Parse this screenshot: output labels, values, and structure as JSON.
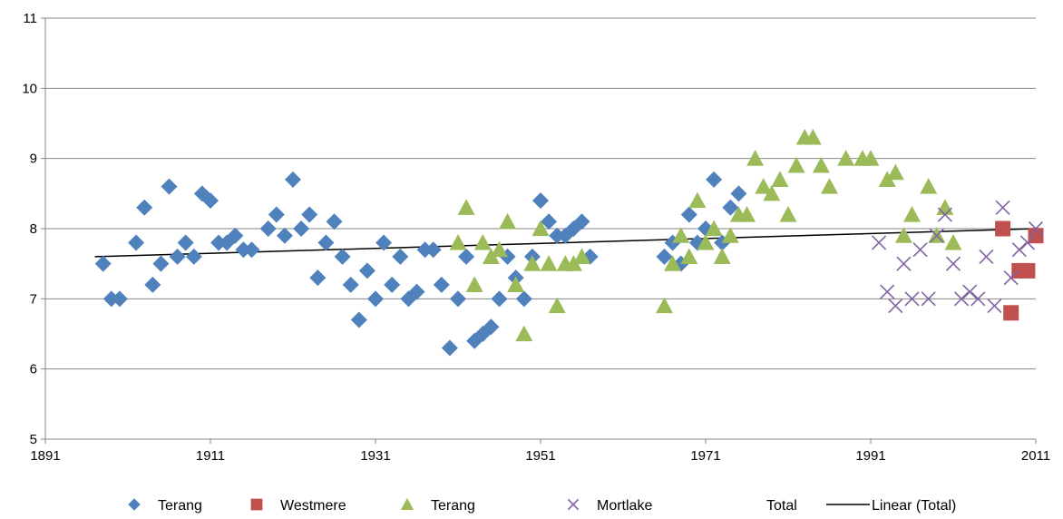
{
  "chart_data": {
    "type": "scatter",
    "xlim": [
      1891,
      2011
    ],
    "ylim": [
      5,
      11
    ],
    "x_ticks": [
      "1891",
      "1911",
      "1931",
      "1951",
      "1971",
      "1991",
      "2011"
    ],
    "y_ticks": [
      "5",
      "6",
      "7",
      "8",
      "9",
      "10",
      "11"
    ],
    "grid": "horizontal",
    "legend_position": "bottom",
    "series": [
      {
        "name": "Terang",
        "marker": "diamond",
        "color": "#4F81BD",
        "x": [
          1898,
          1899,
          1900,
          1902,
          1903,
          1904,
          1905,
          1906,
          1907,
          1908,
          1909,
          1910,
          1911,
          1912,
          1913,
          1914,
          1915,
          1916,
          1918,
          1919,
          1920,
          1921,
          1922,
          1923,
          1924,
          1925,
          1926,
          1927,
          1928,
          1929,
          1930,
          1931,
          1932,
          1933,
          1934,
          1935,
          1936,
          1937,
          1938,
          1939,
          1940,
          1941,
          1942,
          1943,
          1944,
          1945,
          1946,
          1947,
          1948,
          1949,
          1950,
          1951,
          1952,
          1953,
          1954,
          1955,
          1956,
          1957,
          1966,
          1967,
          1968,
          1969,
          1970,
          1971,
          1972,
          1973,
          1974,
          1975
        ],
        "y": [
          7.5,
          7.0,
          7.0,
          7.8,
          8.3,
          7.2,
          7.5,
          8.6,
          7.6,
          7.8,
          7.6,
          8.5,
          8.4,
          7.8,
          7.8,
          7.9,
          7.7,
          7.7,
          8.0,
          8.2,
          7.9,
          8.7,
          8.0,
          8.2,
          7.3,
          7.8,
          8.1,
          7.6,
          7.2,
          6.7,
          7.4,
          7.0,
          7.8,
          7.2,
          7.6,
          7.0,
          7.1,
          7.7,
          7.7,
          7.2,
          6.3,
          7.0,
          7.6,
          6.4,
          6.5,
          6.6,
          7.0,
          7.6,
          7.3,
          7.0,
          7.6,
          8.4,
          8.1,
          7.9,
          7.9,
          8.0,
          8.1,
          7.6,
          7.6,
          7.8,
          7.5,
          8.2,
          7.8,
          8.0,
          8.7,
          7.8,
          8.3,
          8.5
        ]
      },
      {
        "name": "Westmere",
        "marker": "square",
        "color": "#C0504D",
        "x": [
          2007,
          2008,
          2009,
          2010,
          2011
        ],
        "y": [
          8.0,
          6.8,
          7.4,
          7.4,
          7.9
        ]
      },
      {
        "name": "Terang",
        "marker": "triangle",
        "color": "#9BBB59",
        "x": [
          1941,
          1942,
          1943,
          1944,
          1945,
          1946,
          1947,
          1948,
          1949,
          1950,
          1951,
          1952,
          1953,
          1954,
          1955,
          1956,
          1966,
          1967,
          1968,
          1969,
          1970,
          1971,
          1972,
          1973,
          1974,
          1975,
          1976,
          1977,
          1978,
          1979,
          1980,
          1981,
          1982,
          1983,
          1984,
          1985,
          1986,
          1988,
          1990,
          1991,
          1993,
          1994,
          1995,
          1996,
          1998,
          1999,
          2000,
          2001
        ],
        "y": [
          7.8,
          8.3,
          7.2,
          7.8,
          7.6,
          7.7,
          8.1,
          7.2,
          6.5,
          7.5,
          8.0,
          7.5,
          6.9,
          7.5,
          7.5,
          7.6,
          6.9,
          7.5,
          7.9,
          7.6,
          8.4,
          7.8,
          8.0,
          7.6,
          7.9,
          8.2,
          8.2,
          9.0,
          8.6,
          8.5,
          8.7,
          8.2,
          8.9,
          9.3,
          9.3,
          8.9,
          8.6,
          9.0,
          9.0,
          9.0,
          8.7,
          8.8,
          7.9,
          8.2,
          8.6,
          7.9,
          8.3,
          7.8
        ]
      },
      {
        "name": "Mortlake",
        "marker": "cross",
        "color": "#8064A2",
        "x": [
          1992,
          1993,
          1994,
          1995,
          1996,
          1997,
          1998,
          1999,
          2000,
          2001,
          2002,
          2003,
          2004,
          2005,
          2006,
          2007,
          2008,
          2009,
          2010,
          2011
        ],
        "y": [
          7.8,
          7.1,
          6.9,
          7.5,
          7.0,
          7.7,
          7.0,
          7.9,
          8.2,
          7.5,
          7.0,
          7.1,
          7.0,
          7.6,
          6.9,
          8.3,
          7.3,
          7.7,
          7.8,
          8.0
        ]
      },
      {
        "name": "Total",
        "marker": "none",
        "color": "#4BACC6",
        "x": [],
        "y": []
      }
    ],
    "trendline": {
      "name": "Linear (Total)",
      "color": "#000000",
      "x": [
        1897,
        2011
      ],
      "y": [
        7.6,
        8.0
      ]
    }
  }
}
